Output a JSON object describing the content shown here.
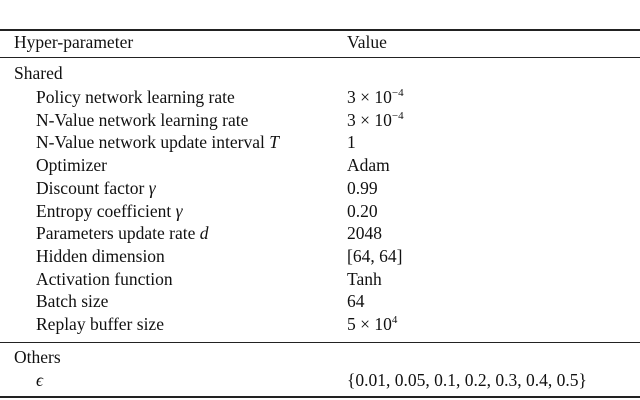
{
  "table": {
    "headers": {
      "param": "Hyper-parameter",
      "value": "Value"
    },
    "sections": [
      {
        "name": "Shared",
        "rows": [
          {
            "param": "Policy network learning rate",
            "param_sym": "",
            "value": "3 × 10",
            "value_exp": "−4"
          },
          {
            "param": "N-Value network learning rate",
            "param_sym": "",
            "value": "3 × 10",
            "value_exp": "−4"
          },
          {
            "param": "N-Value network update interval ",
            "param_sym": "T",
            "value": "1",
            "value_exp": ""
          },
          {
            "param": "Optimizer",
            "param_sym": "",
            "value": "Adam",
            "value_exp": ""
          },
          {
            "param": "Discount factor ",
            "param_sym": "γ",
            "value": "0.99",
            "value_exp": ""
          },
          {
            "param": "Entropy coefficient ",
            "param_sym": "γ",
            "value": "0.20",
            "value_exp": ""
          },
          {
            "param": "Parameters update rate ",
            "param_sym": "d",
            "value": "2048",
            "value_exp": ""
          },
          {
            "param": "Hidden dimension",
            "param_sym": "",
            "value": "[64, 64]",
            "value_exp": ""
          },
          {
            "param": "Activation function",
            "param_sym": "",
            "value": "Tanh",
            "value_exp": ""
          },
          {
            "param": "Batch size",
            "param_sym": "",
            "value": "64",
            "value_exp": ""
          },
          {
            "param": "Replay buffer size",
            "param_sym": "",
            "value": "5 × 10",
            "value_exp": "4"
          }
        ]
      },
      {
        "name": "Others",
        "rows": [
          {
            "param": "",
            "param_sym": "ϵ",
            "value": "{0.01, 0.05, 0.1, 0.2, 0.3, 0.4, 0.5}",
            "value_exp": ""
          }
        ]
      }
    ]
  }
}
